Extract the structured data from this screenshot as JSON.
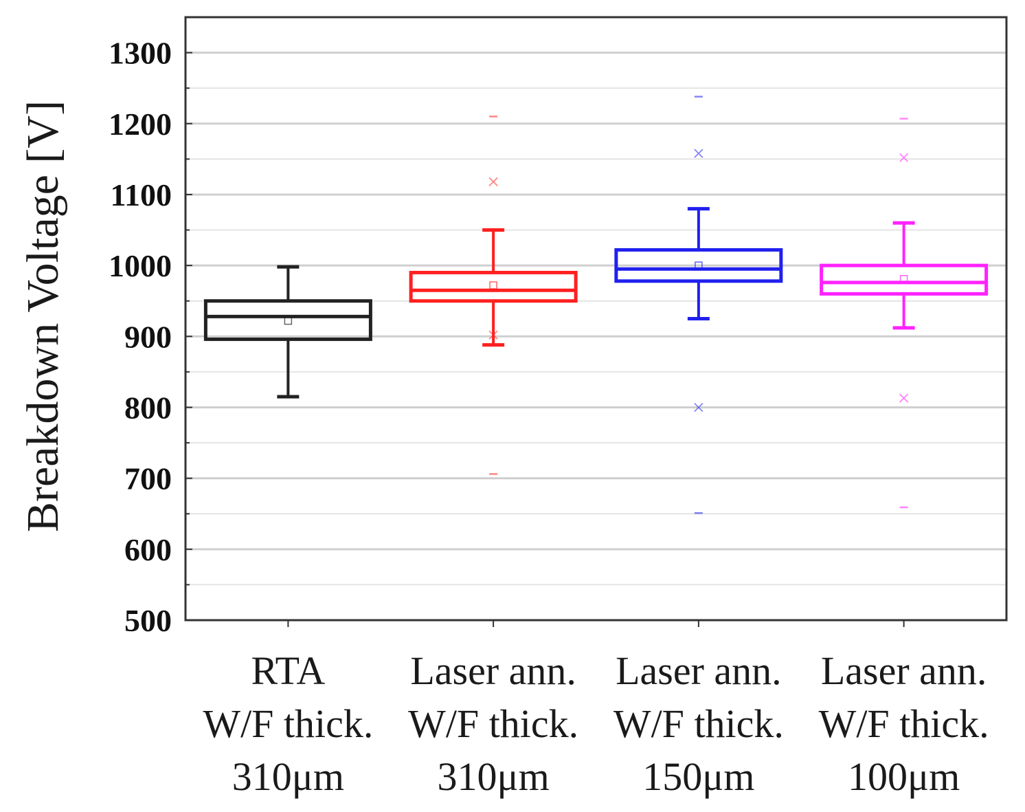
{
  "chart_data": {
    "type": "box",
    "title": "",
    "ylabel": "Breakdown Voltage [V]",
    "xlabel": "",
    "ylim": [
      500,
      1350
    ],
    "yticks": [
      500,
      600,
      700,
      800,
      900,
      1000,
      1100,
      1200,
      1300
    ],
    "ytick_labels": [
      "500",
      "600",
      "700",
      "800",
      "900",
      "1000",
      "1100",
      "1200",
      "1300"
    ],
    "grid": true,
    "series": [
      {
        "name": "RTA W/F thick. 310μm",
        "label_lines": [
          "RTA",
          "W/F thick.",
          "310μm"
        ],
        "color": "#222222",
        "whisker_low": 815,
        "q1": 896,
        "median": 928,
        "q3": 950,
        "whisker_high": 998,
        "mean": 922,
        "outliers_x": [],
        "extremes": []
      },
      {
        "name": "Laser ann. W/F thick. 310μm",
        "label_lines": [
          "Laser ann.",
          "W/F thick.",
          "310μm"
        ],
        "color": "#ff2020",
        "whisker_low": 888,
        "q1": 950,
        "median": 965,
        "q3": 990,
        "whisker_high": 1050,
        "mean": 972,
        "outliers_x": [
          1118,
          902
        ],
        "extremes": [
          1210,
          706
        ]
      },
      {
        "name": "Laser ann. W/F thick. 150μm",
        "label_lines": [
          "Laser ann.",
          "W/F thick.",
          "150μm"
        ],
        "color": "#2020ee",
        "whisker_low": 925,
        "q1": 978,
        "median": 995,
        "q3": 1022,
        "whisker_high": 1080,
        "mean": 1000,
        "outliers_x": [
          1158,
          800
        ],
        "extremes": [
          1238,
          651
        ]
      },
      {
        "name": "Laser ann. W/F thick. 100μm",
        "label_lines": [
          "Laser ann.",
          "W/F thick.",
          "100μm"
        ],
        "color": "#ff22ff",
        "whisker_low": 912,
        "q1": 960,
        "median": 976,
        "q3": 1000,
        "whisker_high": 1060,
        "mean": 981,
        "outliers_x": [
          1152,
          813
        ],
        "extremes": [
          1207,
          659
        ]
      }
    ]
  }
}
